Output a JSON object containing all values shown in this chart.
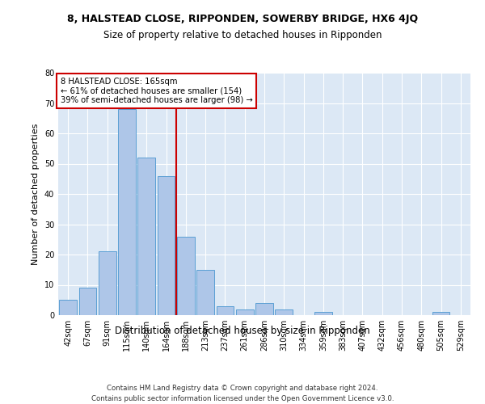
{
  "title": "8, HALSTEAD CLOSE, RIPPONDEN, SOWERBY BRIDGE, HX6 4JQ",
  "subtitle": "Size of property relative to detached houses in Ripponden",
  "xlabel": "Distribution of detached houses by size in Ripponden",
  "ylabel": "Number of detached properties",
  "bin_labels": [
    "42sqm",
    "67sqm",
    "91sqm",
    "115sqm",
    "140sqm",
    "164sqm",
    "188sqm",
    "213sqm",
    "237sqm",
    "261sqm",
    "286sqm",
    "310sqm",
    "334sqm",
    "359sqm",
    "383sqm",
    "407sqm",
    "432sqm",
    "456sqm",
    "480sqm",
    "505sqm",
    "529sqm"
  ],
  "bar_values": [
    5,
    9,
    21,
    68,
    52,
    46,
    26,
    15,
    3,
    2,
    4,
    2,
    0,
    1,
    0,
    0,
    0,
    0,
    0,
    1,
    0
  ],
  "bar_color": "#aec6e8",
  "bar_edge_color": "#5a9fd4",
  "property_line_label": "8 HALSTEAD CLOSE: 165sqm",
  "annotation_line1": "← 61% of detached houses are smaller (154)",
  "annotation_line2": "39% of semi-detached houses are larger (98) →",
  "annotation_box_color": "#ffffff",
  "annotation_box_edge_color": "#cc0000",
  "vline_color": "#cc0000",
  "ylim": [
    0,
    80
  ],
  "yticks": [
    0,
    10,
    20,
    30,
    40,
    50,
    60,
    70,
    80
  ],
  "bg_color": "#dce8f5",
  "footer1": "Contains HM Land Registry data © Crown copyright and database right 2024.",
  "footer2": "Contains public sector information licensed under the Open Government Licence v3.0."
}
